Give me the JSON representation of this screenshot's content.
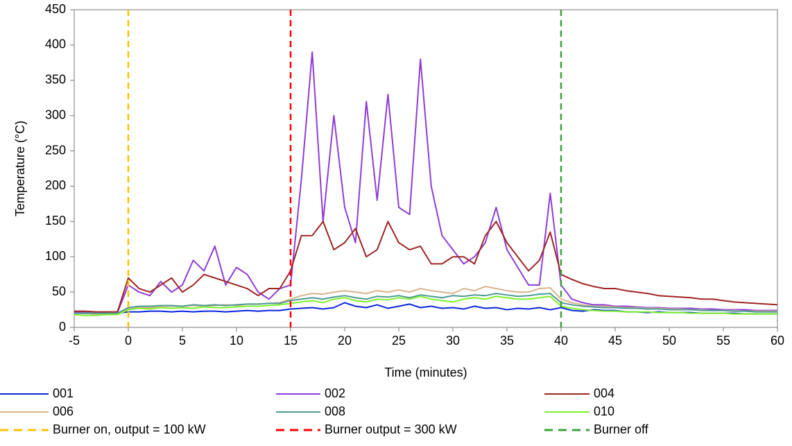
{
  "chart_data": {
    "type": "line",
    "x_label": "Time (minutes)",
    "y_label": "Temperature (°C)",
    "x": [
      -5,
      -4,
      -3,
      -2,
      -1,
      0,
      1,
      2,
      3,
      4,
      5,
      6,
      7,
      8,
      9,
      10,
      11,
      12,
      13,
      14,
      15,
      16,
      17,
      18,
      19,
      20,
      21,
      22,
      23,
      24,
      25,
      26,
      27,
      28,
      29,
      30,
      31,
      32,
      33,
      34,
      35,
      36,
      37,
      38,
      39,
      40,
      41,
      42,
      43,
      44,
      45,
      46,
      47,
      48,
      49,
      50,
      51,
      52,
      53,
      54,
      55,
      56,
      57,
      58,
      59,
      60
    ],
    "series": [
      {
        "name": "001",
        "color": "#0a24e0",
        "values": [
          20,
          20,
          19,
          20,
          20,
          22,
          22,
          23,
          23,
          22,
          23,
          22,
          23,
          23,
          22,
          23,
          24,
          23,
          24,
          24,
          26,
          27,
          28,
          26,
          28,
          35,
          30,
          28,
          32,
          27,
          30,
          33,
          28,
          30,
          27,
          28,
          26,
          30,
          27,
          28,
          25,
          27,
          26,
          28,
          25,
          28,
          24,
          23,
          25,
          24,
          24,
          22,
          22,
          21,
          22,
          21,
          21,
          21,
          20,
          20,
          20,
          20,
          19,
          19,
          19,
          19
        ]
      },
      {
        "name": "002",
        "color": "#8e3bd6",
        "values": [
          22,
          21,
          20,
          21,
          21,
          60,
          50,
          45,
          65,
          50,
          60,
          95,
          80,
          115,
          60,
          85,
          75,
          50,
          40,
          55,
          60,
          210,
          390,
          150,
          300,
          170,
          120,
          320,
          180,
          330,
          170,
          160,
          380,
          200,
          130,
          110,
          90,
          100,
          120,
          170,
          110,
          85,
          60,
          60,
          190,
          60,
          40,
          35,
          32,
          32,
          30,
          30,
          29,
          28,
          28,
          27,
          27,
          27,
          26,
          26,
          25,
          25,
          25,
          24,
          24,
          24
        ]
      },
      {
        "name": "004",
        "color": "#9e2323",
        "values": [
          23,
          23,
          22,
          22,
          22,
          70,
          55,
          50,
          60,
          70,
          50,
          60,
          75,
          70,
          65,
          60,
          55,
          45,
          55,
          55,
          80,
          130,
          130,
          150,
          110,
          120,
          140,
          100,
          110,
          150,
          120,
          110,
          115,
          90,
          90,
          100,
          100,
          90,
          130,
          150,
          120,
          100,
          80,
          95,
          135,
          75,
          68,
          62,
          58,
          55,
          55,
          52,
          50,
          48,
          45,
          44,
          43,
          42,
          40,
          40,
          38,
          36,
          35,
          34,
          33,
          32
        ]
      },
      {
        "name": "006",
        "color": "#d8b48c",
        "values": [
          20,
          20,
          19,
          20,
          20,
          26,
          28,
          28,
          30,
          30,
          30,
          31,
          30,
          31,
          32,
          31,
          33,
          33,
          34,
          35,
          40,
          45,
          48,
          47,
          50,
          52,
          50,
          48,
          52,
          50,
          53,
          50,
          55,
          52,
          50,
          48,
          55,
          52,
          58,
          55,
          52,
          50,
          50,
          55,
          56,
          40,
          35,
          32,
          30,
          30,
          29,
          28,
          28,
          27,
          27,
          26,
          26,
          25,
          25,
          24,
          24,
          24,
          23,
          23,
          23,
          23
        ]
      },
      {
        "name": "008",
        "color": "#4f9a94",
        "values": [
          20,
          20,
          20,
          20,
          20,
          28,
          30,
          30,
          31,
          31,
          30,
          32,
          31,
          32,
          31,
          32,
          33,
          33,
          34,
          34,
          38,
          40,
          42,
          40,
          43,
          45,
          42,
          40,
          44,
          43,
          45,
          42,
          46,
          44,
          42,
          45,
          44,
          46,
          45,
          48,
          46,
          44,
          45,
          47,
          48,
          35,
          32,
          30,
          29,
          28,
          28,
          27,
          27,
          26,
          26,
          25,
          25,
          25,
          24,
          24,
          24,
          23,
          23,
          22,
          22,
          22
        ]
      },
      {
        "name": "010",
        "color": "#7ef22a",
        "values": [
          18,
          17,
          17,
          18,
          18,
          25,
          27,
          26,
          28,
          27,
          28,
          27,
          29,
          28,
          28,
          29,
          30,
          30,
          31,
          32,
          34,
          36,
          38,
          35,
          40,
          42,
          38,
          36,
          40,
          39,
          42,
          40,
          44,
          40,
          38,
          36,
          40,
          42,
          40,
          44,
          42,
          40,
          40,
          42,
          44,
          30,
          27,
          25,
          24,
          23,
          23,
          22,
          22,
          22,
          21,
          21,
          21,
          20,
          20,
          20,
          20,
          19,
          19,
          19,
          19,
          19
        ]
      }
    ],
    "events": [
      {
        "name": "Burner on, output = 100 kW",
        "x": 0,
        "color": "#ffc000"
      },
      {
        "name": "Burner output = 300 kW",
        "x": 15,
        "color": "#ff0000"
      },
      {
        "name": "Burner off",
        "x": 40,
        "color": "#3aa13a"
      }
    ],
    "xlim": [
      -5,
      60
    ],
    "xticks": [
      -5,
      0,
      5,
      10,
      15,
      20,
      25,
      30,
      35,
      40,
      45,
      50,
      55,
      60
    ],
    "ylim": [
      0,
      450
    ],
    "yticks": [
      0,
      50,
      100,
      150,
      200,
      250,
      300,
      350,
      400,
      450
    ]
  }
}
